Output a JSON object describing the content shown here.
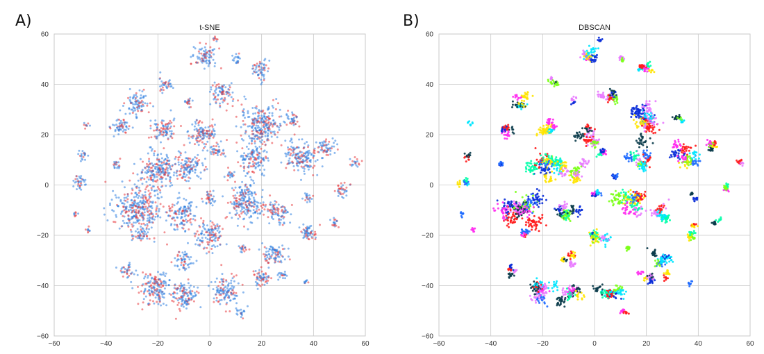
{
  "figure": {
    "panel_labels": [
      "A)",
      "B)"
    ]
  },
  "chart_data": [
    {
      "type": "scatter",
      "title": "t-SNE",
      "xlabel": "",
      "ylabel": "",
      "xlim": [
        -60,
        60
      ],
      "ylim": [
        -60,
        60
      ],
      "xticks": [
        -60,
        -40,
        -20,
        0,
        20,
        40,
        60
      ],
      "yticks": [
        -60,
        -40,
        -20,
        0,
        20,
        40,
        60
      ],
      "grid": true,
      "colors": [
        "#2f7fe0",
        "#e8383d"
      ],
      "clusters": [
        {
          "x": -2,
          "y": 51,
          "r": 5
        },
        {
          "x": 2,
          "y": 58,
          "r": 1
        },
        {
          "x": 11,
          "y": 50,
          "r": 2
        },
        {
          "x": 20,
          "y": 46,
          "r": 4
        },
        {
          "x": -17,
          "y": 40,
          "r": 3
        },
        {
          "x": -8,
          "y": 33,
          "r": 2
        },
        {
          "x": 5,
          "y": 36,
          "r": 5
        },
        {
          "x": -28,
          "y": 32,
          "r": 5
        },
        {
          "x": -34,
          "y": 23,
          "r": 4
        },
        {
          "x": -18,
          "y": 22,
          "r": 5
        },
        {
          "x": -3,
          "y": 20,
          "r": 6
        },
        {
          "x": 20,
          "y": 24,
          "r": 9
        },
        {
          "x": 32,
          "y": 26,
          "r": 3
        },
        {
          "x": -48,
          "y": 24,
          "r": 1
        },
        {
          "x": -49,
          "y": 12,
          "r": 2
        },
        {
          "x": -36,
          "y": 8,
          "r": 2
        },
        {
          "x": -50,
          "y": 1,
          "r": 3
        },
        {
          "x": -20,
          "y": 6,
          "r": 8
        },
        {
          "x": -8,
          "y": 7,
          "r": 6
        },
        {
          "x": 3,
          "y": 13,
          "r": 3
        },
        {
          "x": 8,
          "y": 4,
          "r": 2
        },
        {
          "x": 17,
          "y": 10,
          "r": 6
        },
        {
          "x": 35,
          "y": 11,
          "r": 7
        },
        {
          "x": 45,
          "y": 15,
          "r": 4
        },
        {
          "x": 56,
          "y": 9,
          "r": 2
        },
        {
          "x": -28,
          "y": -10,
          "r": 10
        },
        {
          "x": -11,
          "y": -12,
          "r": 6
        },
        {
          "x": 0,
          "y": -5,
          "r": 3
        },
        {
          "x": 14,
          "y": -7,
          "r": 8
        },
        {
          "x": 26,
          "y": -11,
          "r": 5
        },
        {
          "x": 38,
          "y": -5,
          "r": 2
        },
        {
          "x": 51,
          "y": -2,
          "r": 3
        },
        {
          "x": -52,
          "y": -12,
          "r": 1
        },
        {
          "x": -47,
          "y": -18,
          "r": 1
        },
        {
          "x": -27,
          "y": -20,
          "r": 3
        },
        {
          "x": 0,
          "y": -20,
          "r": 6
        },
        {
          "x": 13,
          "y": -25,
          "r": 2
        },
        {
          "x": 25,
          "y": -28,
          "r": 5
        },
        {
          "x": 38,
          "y": -19,
          "r": 4
        },
        {
          "x": 48,
          "y": -15,
          "r": 2
        },
        {
          "x": -32,
          "y": -34,
          "r": 3
        },
        {
          "x": -10,
          "y": -30,
          "r": 4
        },
        {
          "x": -21,
          "y": -41,
          "r": 7
        },
        {
          "x": -10,
          "y": -44,
          "r": 6
        },
        {
          "x": 6,
          "y": -42,
          "r": 6
        },
        {
          "x": 20,
          "y": -37,
          "r": 4
        },
        {
          "x": 28,
          "y": -36,
          "r": 2
        },
        {
          "x": 37,
          "y": -39,
          "r": 1
        },
        {
          "x": 12,
          "y": -51,
          "r": 2
        }
      ]
    },
    {
      "type": "scatter",
      "title": "DBSCAN",
      "xlabel": "",
      "ylabel": "",
      "xlim": [
        -60,
        60
      ],
      "ylim": [
        -60,
        60
      ],
      "xticks": [
        -60,
        -40,
        -20,
        0,
        20,
        40,
        60
      ],
      "yticks": [
        -60,
        -40,
        -20,
        0,
        20,
        40,
        60
      ],
      "grid": true,
      "colors": [
        "#0a3b4a",
        "#0b2fd8",
        "#00e5ff",
        "#e97cff",
        "#7cff1a",
        "#ff1a1a",
        "#ffe400",
        "#1f6bff",
        "#ff2ef0",
        "#00ffa8"
      ]
    }
  ]
}
